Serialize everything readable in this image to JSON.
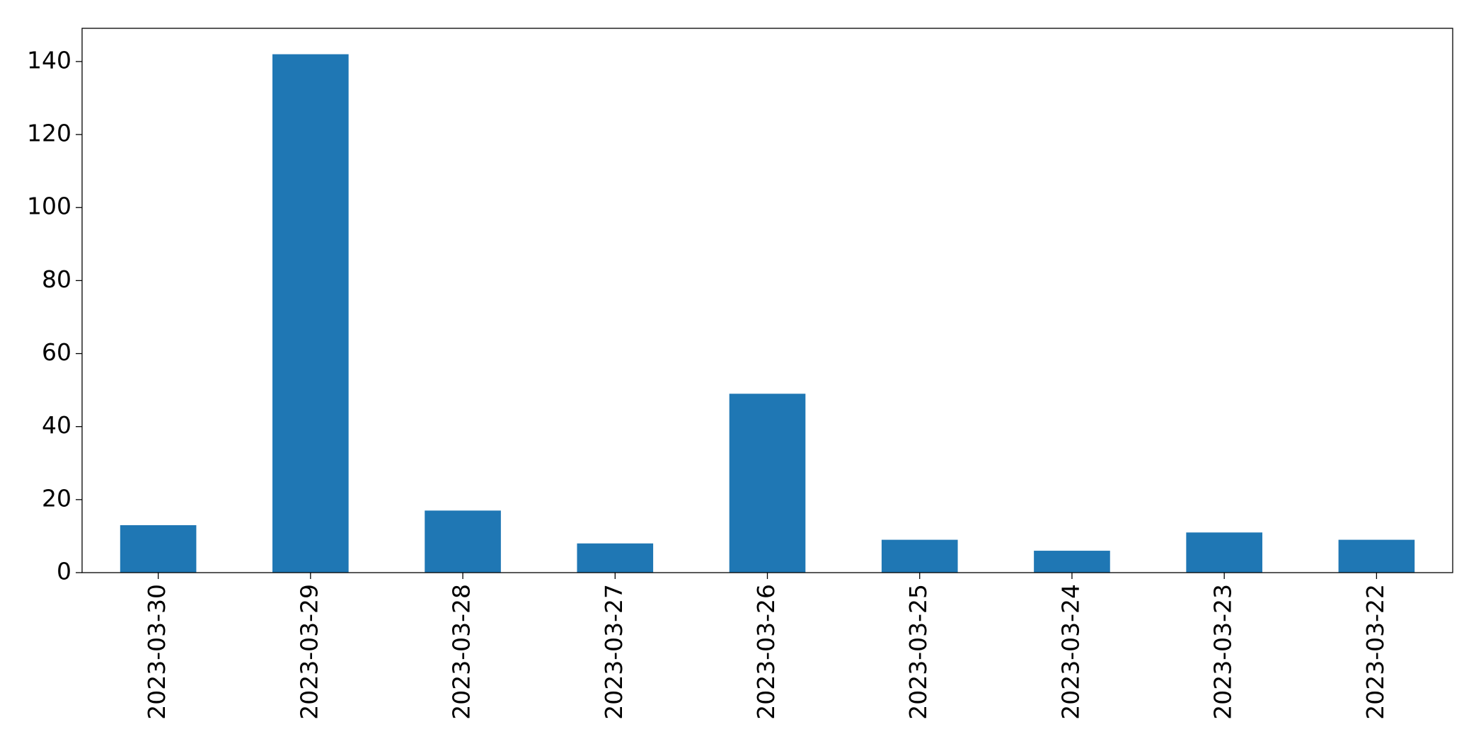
{
  "chart_data": {
    "type": "bar",
    "categories": [
      "2023-03-30",
      "2023-03-29",
      "2023-03-28",
      "2023-03-27",
      "2023-03-26",
      "2023-03-25",
      "2023-03-24",
      "2023-03-23",
      "2023-03-22"
    ],
    "values": [
      13,
      142,
      17,
      8,
      49,
      9,
      6,
      11,
      9
    ],
    "color": "#1f77b4",
    "ylim": [
      0,
      149.1
    ],
    "yticks": [
      0,
      20,
      40,
      60,
      80,
      100,
      120,
      140
    ],
    "grid": false
  }
}
